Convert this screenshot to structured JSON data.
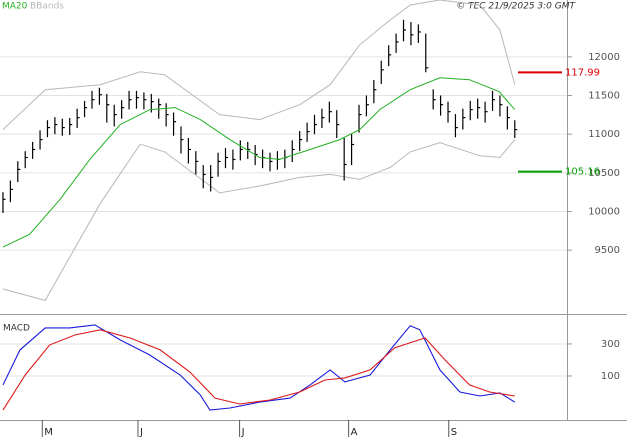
{
  "chart_data": [
    {
      "type": "ohlc",
      "source": "© TEC 21/9/2025 3:0 GMT",
      "color": "#000000",
      "x": [
        0,
        1,
        2,
        3,
        4,
        5,
        6,
        7,
        8,
        9,
        10,
        11,
        12,
        13,
        14,
        15,
        16,
        17,
        18,
        19,
        20,
        21,
        22,
        23,
        24,
        25,
        26,
        27,
        28,
        29,
        30,
        31,
        32,
        33,
        34,
        35,
        36,
        37,
        38,
        39,
        40,
        41,
        42,
        43,
        44,
        45,
        46,
        47,
        48,
        49,
        50,
        51,
        52,
        53,
        54,
        55,
        56,
        57,
        58,
        59,
        60,
        61,
        62,
        63,
        64,
        65,
        66,
        67,
        68,
        69
      ],
      "high": [
        10250,
        10400,
        10650,
        10780,
        10900,
        11050,
        11180,
        11220,
        11200,
        11210,
        11330,
        11430,
        11560,
        11600,
        11520,
        11380,
        11440,
        11560,
        11560,
        11540,
        11520,
        11460,
        11400,
        11280,
        11100,
        10950,
        10780,
        10600,
        10600,
        10760,
        10820,
        10800,
        10920,
        10900,
        10860,
        10800,
        10760,
        10780,
        10800,
        10920,
        11040,
        11150,
        11250,
        11330,
        11420,
        11310,
        10950,
        11000,
        11380,
        11500,
        11700,
        11950,
        12150,
        12300,
        12480,
        12450,
        12420,
        12300,
        11580,
        11500,
        11420,
        11260,
        11330,
        11430,
        11460,
        11420,
        11560,
        11500,
        11360,
        11180
      ],
      "low": [
        9980,
        10120,
        10380,
        10560,
        10680,
        10800,
        10960,
        11000,
        10980,
        10990,
        11080,
        11220,
        11330,
        11380,
        11150,
        11100,
        11200,
        11320,
        11330,
        11320,
        11280,
        11200,
        11100,
        10980,
        10750,
        10620,
        10480,
        10300,
        10260,
        10450,
        10560,
        10540,
        10660,
        10680,
        10600,
        10560,
        10520,
        10540,
        10560,
        10640,
        10780,
        10900,
        11000,
        11080,
        11150,
        10950,
        10400,
        10600,
        11020,
        11230,
        11400,
        11650,
        11880,
        12050,
        12200,
        12150,
        12180,
        11800,
        11320,
        11240,
        11150,
        10960,
        11060,
        11180,
        11200,
        11150,
        11300,
        11230,
        11060,
        10950
      ],
      "close": [
        10157,
        10286,
        10544,
        10698,
        10802,
        10930,
        11085,
        11124,
        11085,
        11124,
        11214,
        11343,
        11446,
        11510,
        11381,
        11253,
        11343,
        11446,
        11472,
        11446,
        11420,
        11381,
        11253,
        11162,
        10930,
        10802,
        10647,
        10479,
        10441,
        10647,
        10698,
        10673,
        10802,
        10802,
        10737,
        10698,
        10647,
        10673,
        10698,
        10802,
        10930,
        11033,
        11124,
        11214,
        11291,
        11124,
        10608,
        10866,
        11253,
        11381,
        11575,
        11832,
        12026,
        12193,
        12348,
        12284,
        12322,
        11858,
        11446,
        11381,
        11291,
        11085,
        11214,
        11317,
        11343,
        11291,
        11446,
        11381,
        11214,
        11059
      ],
      "ma": {
        "name": "MA20",
        "color": "#22b022",
        "x": [
          0,
          3.6,
          7.7,
          11.7,
          15.8,
          19.8,
          23.2,
          26.6,
          30.6,
          34.6,
          37.3,
          41.4,
          45.4,
          48.1,
          50.8,
          54.9,
          58.9,
          62.9,
          66.9,
          69
        ],
        "values": [
          9539,
          9706,
          10157,
          10673,
          11124,
          11317,
          11343,
          11188,
          10930,
          10698,
          10673,
          10802,
          10930,
          11059,
          11317,
          11575,
          11729,
          11704,
          11549,
          11317
        ]
      },
      "bands": {
        "name": "BBands",
        "color": "#b8b8b8",
        "x": [
          0,
          5.7,
          13.1,
          18.5,
          21.8,
          29.2,
          34.6,
          40,
          44.1,
          48.1,
          52.2,
          54.9,
          58.9,
          64.3,
          67,
          69
        ],
        "upper": [
          11059,
          11575,
          11639,
          11807,
          11768,
          11253,
          11188,
          11381,
          11639,
          12155,
          12477,
          12670,
          12735,
          12670,
          12348,
          11639
        ],
        "lower": [
          8997,
          8850,
          10100,
          10870,
          10770,
          10240,
          10330,
          10441,
          10479,
          10415,
          10570,
          10770,
          10890,
          10720,
          10700,
          10930
        ]
      },
      "levels": [
        {
          "value": 11799,
          "label": "117.99",
          "color": "#dd0000"
        },
        {
          "value": 10516,
          "label": "105.16",
          "color": "#00a000"
        }
      ],
      "xlim": [
        -0.4,
        69.3
      ],
      "ylim": [
        8700,
        12735
      ],
      "yticks": [
        9500,
        10000,
        10500,
        11000,
        11500,
        12000
      ],
      "grid": true
    },
    {
      "type": "line",
      "title": "MACD",
      "series": [
        {
          "color": "#1a1adc",
          "x": [
            0,
            2.3,
            5.7,
            9,
            12.4,
            15.8,
            19.8,
            23.9,
            26.6,
            27.9,
            30.6,
            34.6,
            38.7,
            41.4,
            44.1,
            46.1,
            49.5,
            52.2,
            54.9,
            56.2,
            58.9,
            61.6,
            64.3,
            67,
            69
          ],
          "values": [
            44,
            263,
            400,
            400,
            419,
            325,
            231,
            106,
            -19,
            -113,
            -100,
            -63,
            -38,
            44,
            138,
            63,
            106,
            263,
            413,
            388,
            138,
            0,
            -25,
            -6,
            -63
          ]
        },
        {
          "color": "#dc1a1a",
          "x": [
            0,
            3,
            6.3,
            9.7,
            13.1,
            17.1,
            21.2,
            25.2,
            28.6,
            31.9,
            36,
            40,
            43.4,
            46.1,
            49.5,
            52.8,
            56.9,
            59.6,
            62.9,
            65.6,
            69
          ],
          "values": [
            -113,
            106,
            294,
            356,
            388,
            338,
            263,
            125,
            -38,
            -75,
            -50,
            0,
            75,
            88,
            138,
            275,
            338,
            200,
            44,
            0,
            -25
          ]
        }
      ],
      "xlim": [
        -0.4,
        69.3
      ],
      "xticks": [
        {
          "value": 5.3,
          "label": "M"
        },
        {
          "value": 18.2,
          "label": "J"
        },
        {
          "value": 31.9,
          "label": "J"
        },
        {
          "value": 46.6,
          "label": "A"
        },
        {
          "value": 60.1,
          "label": "S"
        }
      ],
      "ylim": [
        -175,
        462
      ],
      "yticks": [
        100,
        300
      ],
      "grid": true
    }
  ]
}
